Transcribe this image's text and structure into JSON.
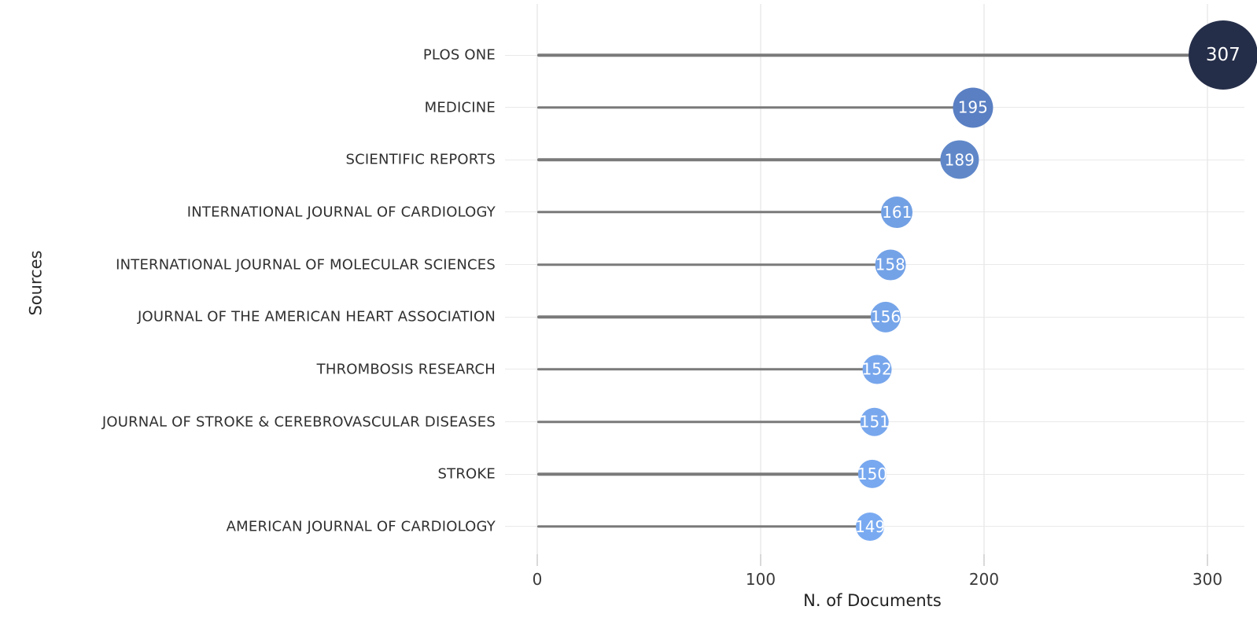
{
  "figure": {
    "background": "#ffffff"
  },
  "chart_data": {
    "type": "lollipop",
    "orientation": "horizontal",
    "title": "",
    "xlabel": "N. of Documents",
    "ylabel": "Sources",
    "xlim": [
      0,
      320
    ],
    "x_ticks": [
      "0",
      "100",
      "200",
      "300"
    ],
    "x_tick_values": [
      0,
      100,
      200,
      300
    ],
    "grid": true,
    "legend": "none",
    "categories": [
      "PLOS ONE",
      "MEDICINE",
      "SCIENTIFIC REPORTS",
      "INTERNATIONAL JOURNAL OF CARDIOLOGY",
      "INTERNATIONAL JOURNAL OF MOLECULAR SCIENCES",
      "JOURNAL OF THE AMERICAN HEART ASSOCIATION",
      "THROMBOSIS RESEARCH",
      "JOURNAL OF STROKE & CEREBROVASCULAR DISEASES",
      "STROKE",
      "AMERICAN JOURNAL OF CARDIOLOGY"
    ],
    "values": [
      307,
      195,
      189,
      161,
      158,
      156,
      152,
      151,
      150,
      149
    ],
    "value_labels": [
      "307",
      "195",
      "189",
      "161",
      "158",
      "156",
      "152",
      "151",
      "150",
      "149"
    ],
    "point_colors": [
      "#252E49",
      "#5A7FC3",
      "#6088C9",
      "#72A0E4",
      "#74A2E7",
      "#75A4E9",
      "#77A6EC",
      "#78A7ED",
      "#78A8EF",
      "#79AAF1"
    ],
    "stem_color": "#7a7a7a",
    "gridline_color": "#ececec",
    "value_text_color": "#ffffff"
  }
}
